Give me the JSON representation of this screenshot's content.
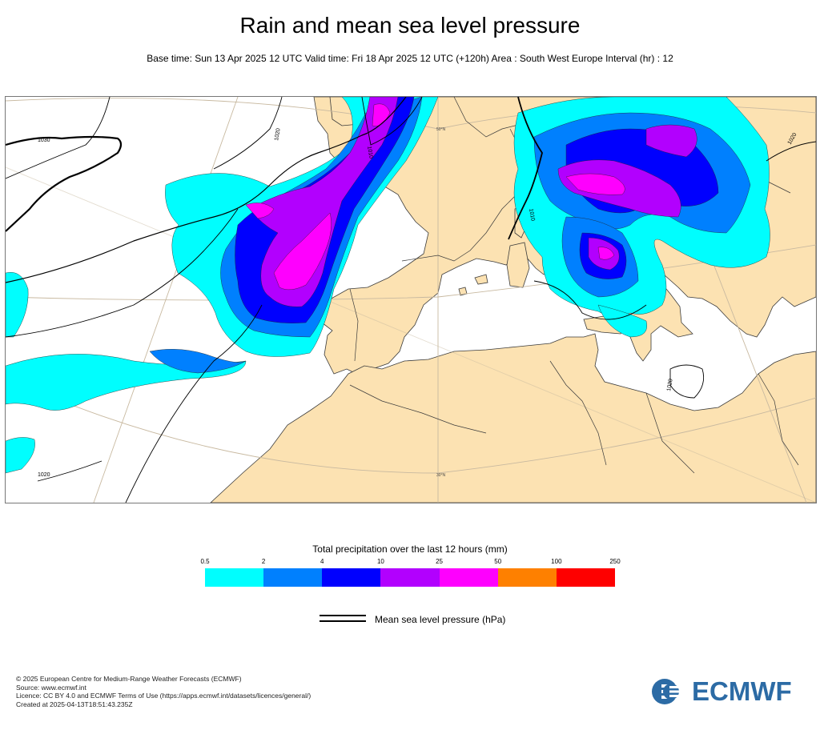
{
  "header": {
    "title": "Rain and mean sea level pressure",
    "subtitle": "Base time: Sun 13 Apr 2025 12 UTC Valid time: Fri 18 Apr 2025 12 UTC (+120h) Area : South West Europe Interval (hr) : 12"
  },
  "map": {
    "isobar_labels": [
      "1030",
      "1020",
      "1010",
      "1010",
      "1020",
      "1020",
      "1020"
    ],
    "parallel_labels": [
      "50°N",
      "30°N"
    ],
    "colors": {
      "land": "#fce2b2",
      "sea": "#ffffff",
      "graticule": "#c8b9a0",
      "border": "#3b3b3b",
      "isobar": "#000000"
    }
  },
  "legend": {
    "title": "Total precipitation over the last 12 hours (mm)",
    "ticks": [
      "0.5",
      "2",
      "4",
      "10",
      "25",
      "50",
      "100",
      "250"
    ],
    "colors": [
      "#00fefe",
      "#0080fe",
      "#0000fe",
      "#b200fe",
      "#fe00fe",
      "#fe8000",
      "#fe0000"
    ],
    "line_label": "Mean sea level pressure (hPa)"
  },
  "footer": {
    "lines": [
      "© 2025 European Centre for Medium-Range Weather Forecasts (ECMWF)",
      "Source: www.ecmwf.int",
      "Licence: CC BY 4.0 and ECMWF Terms of Use (https://apps.ecmwf.int/datasets/licences/general/)",
      "Created at 2025-04-13T18:51:43.235Z"
    ],
    "logo_text": "ECMWF",
    "logo_icon": "ecmwf-logo-icon"
  }
}
